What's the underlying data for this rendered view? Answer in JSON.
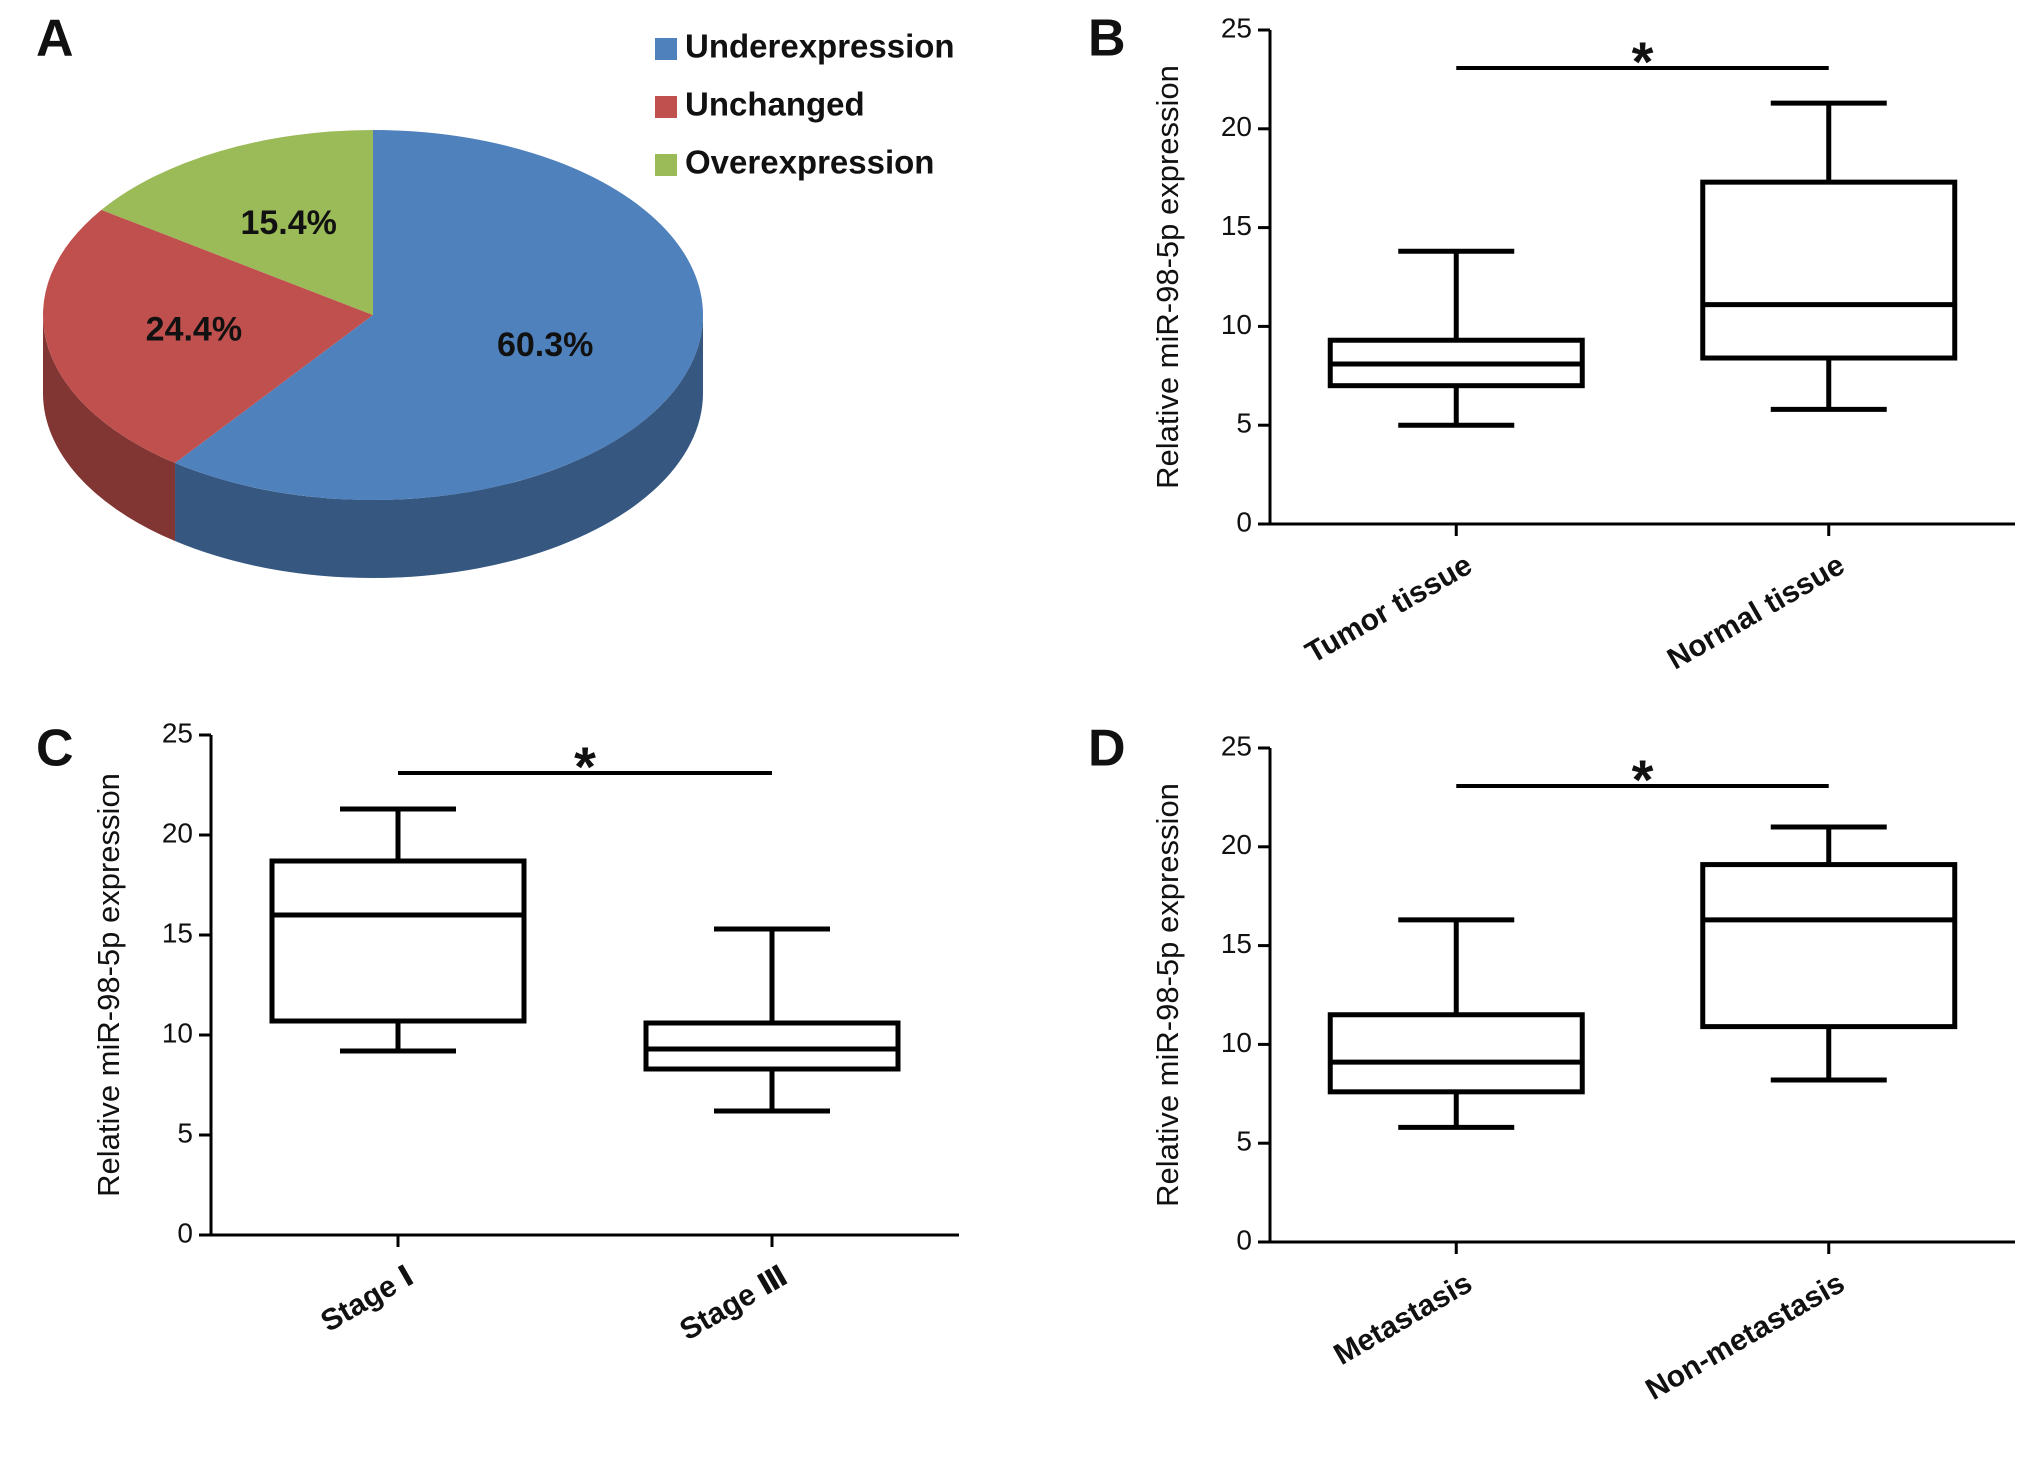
{
  "chart_data": [
    {
      "type": "pie",
      "panel": "A",
      "categories": [
        "Underexpression",
        "Unchanged",
        "Overexpression"
      ],
      "values": [
        60.3,
        24.4,
        15.4
      ],
      "value_labels": [
        "60.3%",
        "24.4%",
        "15.4%"
      ],
      "colors": [
        "#4f81bd",
        "#c0504d",
        "#9bbb59"
      ]
    },
    {
      "type": "box",
      "panel": "B",
      "ylabel": "Relative miR-98-5p expression",
      "categories": [
        "Tumor tissue",
        "Normal tissue"
      ],
      "min": [
        5.0,
        5.8
      ],
      "q1": [
        7.0,
        8.4
      ],
      "median": [
        8.1,
        11.1
      ],
      "q3": [
        9.3,
        17.3
      ],
      "max": [
        13.8,
        21.3
      ],
      "ylim": [
        0,
        25
      ],
      "yticks": [
        0,
        5,
        10,
        15,
        20,
        25
      ],
      "annotation": "*",
      "color": "#000000"
    },
    {
      "type": "box",
      "panel": "C",
      "ylabel": "Relative miR-98-5p expression",
      "categories": [
        "Stage Ⅰ",
        "Stage Ⅲ"
      ],
      "min": [
        9.2,
        6.2
      ],
      "q1": [
        10.7,
        8.3
      ],
      "median": [
        16.0,
        9.3
      ],
      "q3": [
        18.7,
        10.6
      ],
      "max": [
        21.3,
        15.3
      ],
      "ylim": [
        0,
        25
      ],
      "yticks": [
        0,
        5,
        10,
        15,
        20,
        25
      ],
      "annotation": "*",
      "color": "#000000"
    },
    {
      "type": "box",
      "panel": "D",
      "ylabel": "Relative miR-98-5p expression",
      "categories": [
        "Metastasis",
        "Non-metastasis"
      ],
      "min": [
        5.8,
        8.2
      ],
      "q1": [
        7.6,
        10.9
      ],
      "median": [
        9.1,
        16.3
      ],
      "q3": [
        11.5,
        19.1
      ],
      "max": [
        16.3,
        21.0
      ],
      "ylim": [
        0,
        25
      ],
      "yticks": [
        0,
        5,
        10,
        15,
        20,
        25
      ],
      "annotation": "*",
      "color": "#000000"
    }
  ]
}
